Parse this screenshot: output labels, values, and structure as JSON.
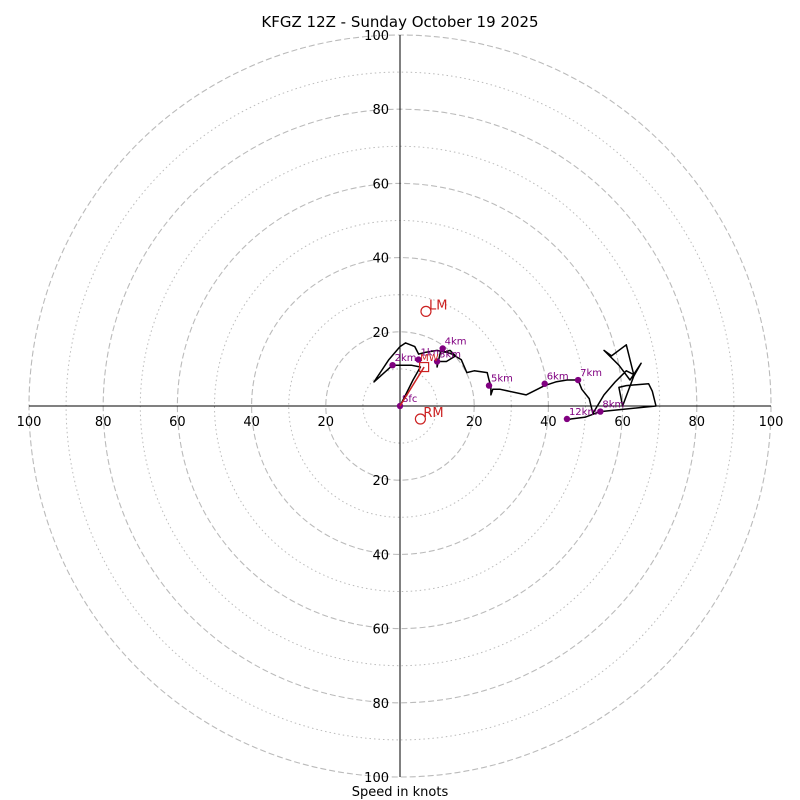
{
  "chart_data": {
    "type": "hodograph",
    "title": "KFGZ 12Z - Sunday October 19 2025",
    "xlabel": "Speed in knots",
    "max_speed": 100,
    "ring_major": [
      20,
      40,
      60,
      80,
      100
    ],
    "ring_minor": [
      10,
      30,
      50,
      70,
      90
    ],
    "tick_labels": {
      "right": [
        "20",
        "40",
        "60",
        "80",
        "100"
      ],
      "left": [
        "20",
        "40",
        "60",
        "80",
        "100"
      ],
      "up": [
        "20",
        "40",
        "60",
        "80",
        "100"
      ],
      "down": [
        "20",
        "40",
        "60",
        "80",
        "100"
      ]
    },
    "colors": {
      "trace": "#000000",
      "marker": "#800080",
      "motion": "#cc2222",
      "ring": "#bbbbbb"
    },
    "trace": [
      [
        0.0,
        0.0
      ],
      [
        1.5,
        3.0
      ],
      [
        3.5,
        7.0
      ],
      [
        5.5,
        10.5
      ],
      [
        3.0,
        11.0
      ],
      [
        -2.0,
        11.0
      ],
      [
        -7.0,
        6.5
      ],
      [
        -3.0,
        12.5
      ],
      [
        0.0,
        16.0
      ],
      [
        1.5,
        17.0
      ],
      [
        4.0,
        16.0
      ],
      [
        5.0,
        14.0
      ],
      [
        7.0,
        14.5
      ],
      [
        10.0,
        15.0
      ],
      [
        12.0,
        14.5
      ],
      [
        13.5,
        15.0
      ],
      [
        15.0,
        13.5
      ],
      [
        12.5,
        12.0
      ],
      [
        10.0,
        12.0
      ],
      [
        10.0,
        10.5
      ],
      [
        11.0,
        15.0
      ],
      [
        14.0,
        14.0
      ],
      [
        16.5,
        12.5
      ],
      [
        18.0,
        9.0
      ],
      [
        20.0,
        9.5
      ],
      [
        23.5,
        9.0
      ],
      [
        24.0,
        7.0
      ],
      [
        24.5,
        5.5
      ],
      [
        24.5,
        3.0
      ],
      [
        25.0,
        4.5
      ],
      [
        27.0,
        4.5
      ],
      [
        34.0,
        3.0
      ],
      [
        37.0,
        4.5
      ],
      [
        39.0,
        5.5
      ],
      [
        42.0,
        6.5
      ],
      [
        45.0,
        7.0
      ],
      [
        48.0,
        7.0
      ],
      [
        49.0,
        4.5
      ],
      [
        51.0,
        2.0
      ],
      [
        52.0,
        -2.0
      ],
      [
        55.0,
        3.0
      ],
      [
        58.0,
        6.5
      ],
      [
        61.0,
        9.5
      ],
      [
        63.0,
        8.5
      ],
      [
        61.0,
        16.5
      ],
      [
        57.0,
        13.5
      ],
      [
        55.0,
        15.0
      ],
      [
        59.0,
        11.0
      ],
      [
        62.0,
        7.0
      ],
      [
        65.0,
        11.5
      ],
      [
        63.0,
        8.0
      ],
      [
        60.0,
        0.0
      ],
      [
        59.0,
        5.0
      ],
      [
        61.0,
        5.5
      ],
      [
        67.0,
        6.0
      ],
      [
        68.0,
        4.0
      ],
      [
        69.0,
        0.0
      ],
      [
        54.0,
        -1.5
      ],
      [
        50.0,
        -3.0
      ],
      [
        46.0,
        -3.5
      ],
      [
        45.0,
        -4.0
      ]
    ],
    "height_points": [
      {
        "label": "Sfc",
        "u": 0.0,
        "v": 0.0
      },
      {
        "label": "1km",
        "u": 5.0,
        "v": 12.5
      },
      {
        "label": "2km",
        "u": -2.0,
        "v": 11.0
      },
      {
        "label": "3km",
        "u": 10.0,
        "v": 12.0
      },
      {
        "label": "4km",
        "u": 11.5,
        "v": 15.5
      },
      {
        "label": "5km",
        "u": 24.0,
        "v": 5.5
      },
      {
        "label": "6km",
        "u": 39.0,
        "v": 6.0
      },
      {
        "label": "7km",
        "u": 48.0,
        "v": 7.0
      },
      {
        "label": "8km",
        "u": 54.0,
        "v": -1.5
      },
      {
        "label": "12km",
        "u": 45.0,
        "v": -3.5
      }
    ],
    "storm_motion": {
      "rm": {
        "label": "RM",
        "u": 5.5,
        "v": -3.5
      },
      "lm": {
        "label": "LM",
        "u": 7.0,
        "v": 25.5
      },
      "mean": {
        "label": "MW",
        "u": 6.5,
        "v": 10.5
      }
    }
  }
}
